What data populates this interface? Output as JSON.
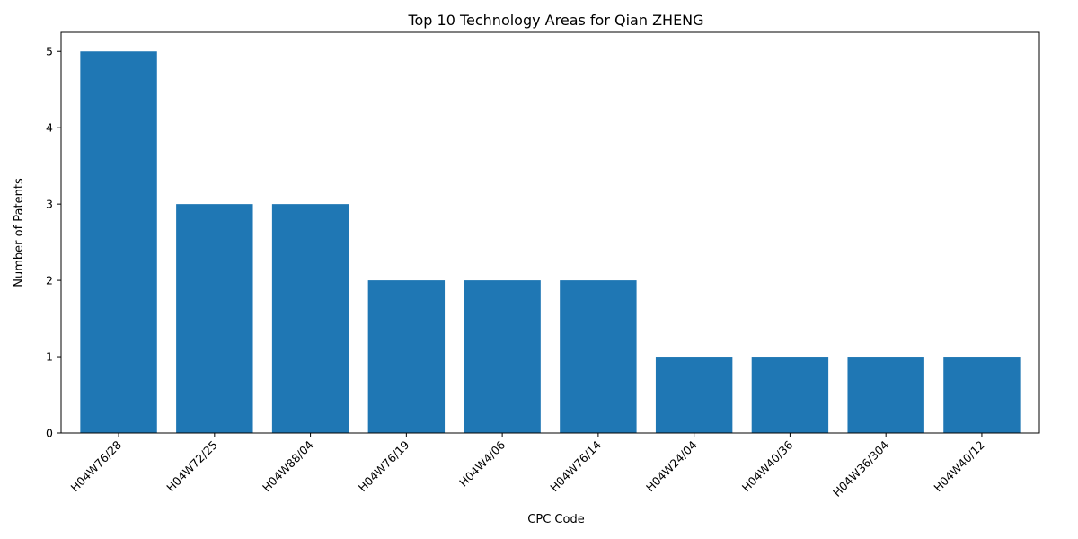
{
  "chart_data": {
    "type": "bar",
    "title": "Top 10 Technology Areas for Qian ZHENG",
    "xlabel": "CPC Code",
    "ylabel": "Number of Patents",
    "categories": [
      "H04W76/28",
      "H04W72/25",
      "H04W88/04",
      "H04W76/19",
      "H04W4/06",
      "H04W76/14",
      "H04W24/04",
      "H04W40/36",
      "H04W36/304",
      "H04W40/12"
    ],
    "values": [
      5,
      3,
      3,
      2,
      2,
      2,
      1,
      1,
      1,
      1
    ],
    "ylim": [
      0,
      5.25
    ],
    "yticks": [
      0,
      1,
      2,
      3,
      4,
      5
    ],
    "grid": false,
    "bar_color": "#1f77b4"
  }
}
